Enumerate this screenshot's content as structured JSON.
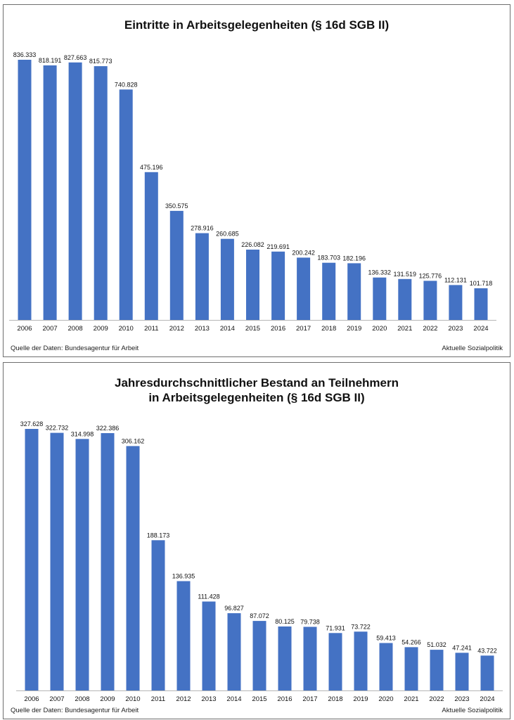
{
  "chart_data": [
    {
      "type": "bar",
      "title": "Eintritte in Arbeitsgelegenheiten (§ 16d SGB II)",
      "categories": [
        "2006",
        "2007",
        "2008",
        "2009",
        "2010",
        "2011",
        "2012",
        "2013",
        "2014",
        "2015",
        "2016",
        "2017",
        "2018",
        "2019",
        "2020",
        "2021",
        "2022",
        "2023",
        "2024"
      ],
      "values": [
        836333,
        818191,
        827663,
        815773,
        740828,
        475196,
        350575,
        278916,
        260685,
        226082,
        219691,
        200242,
        183703,
        182196,
        136332,
        131519,
        125776,
        112131,
        101718
      ],
      "value_labels": [
        "836.333",
        "818.191",
        "827.663",
        "815.773",
        "740.828",
        "475.196",
        "350.575",
        "278.916",
        "260.685",
        "226.082",
        "219.691",
        "200.242",
        "183.703",
        "182.196",
        "136.332",
        "131.519",
        "125.776",
        "112.131",
        "101.718"
      ],
      "source": "Quelle der Daten: Bundesagentur für Arbeit",
      "credit": "Aktuelle Sozialpolitik",
      "bar_color": "#4472c4",
      "ylim": [
        0,
        836333
      ],
      "grid": false,
      "legend": "none"
    },
    {
      "type": "bar",
      "title": [
        "Jahresdurchschnittlicher Bestand an Teilnehmern",
        "in Arbeitsgelegenheiten (§ 16d SGB II)"
      ],
      "categories": [
        "2006",
        "2007",
        "2008",
        "2009",
        "2010",
        "2011",
        "2012",
        "2013",
        "2014",
        "2015",
        "2016",
        "2017",
        "2018",
        "2019",
        "2020",
        "2021",
        "2022",
        "2023",
        "2024"
      ],
      "values": [
        327628,
        322732,
        314998,
        322386,
        306162,
        188173,
        136935,
        111428,
        96827,
        87072,
        80125,
        79738,
        71931,
        73722,
        59413,
        54266,
        51032,
        47241,
        43722
      ],
      "value_labels": [
        "327.628",
        "322.732",
        "314.998",
        "322.386",
        "306.162",
        "188.173",
        "136.935",
        "111.428",
        "96.827",
        "87.072",
        "80.125",
        "79.738",
        "71.931",
        "73.722",
        "59.413",
        "54.266",
        "51.032",
        "47.241",
        "43.722"
      ],
      "source": "Quelle der Daten: Bundesagentur für Arbeit",
      "credit": "Aktuelle Sozialpolitik",
      "bar_color": "#4472c4",
      "ylim": [
        0,
        327628
      ],
      "grid": false,
      "legend": "none"
    }
  ]
}
